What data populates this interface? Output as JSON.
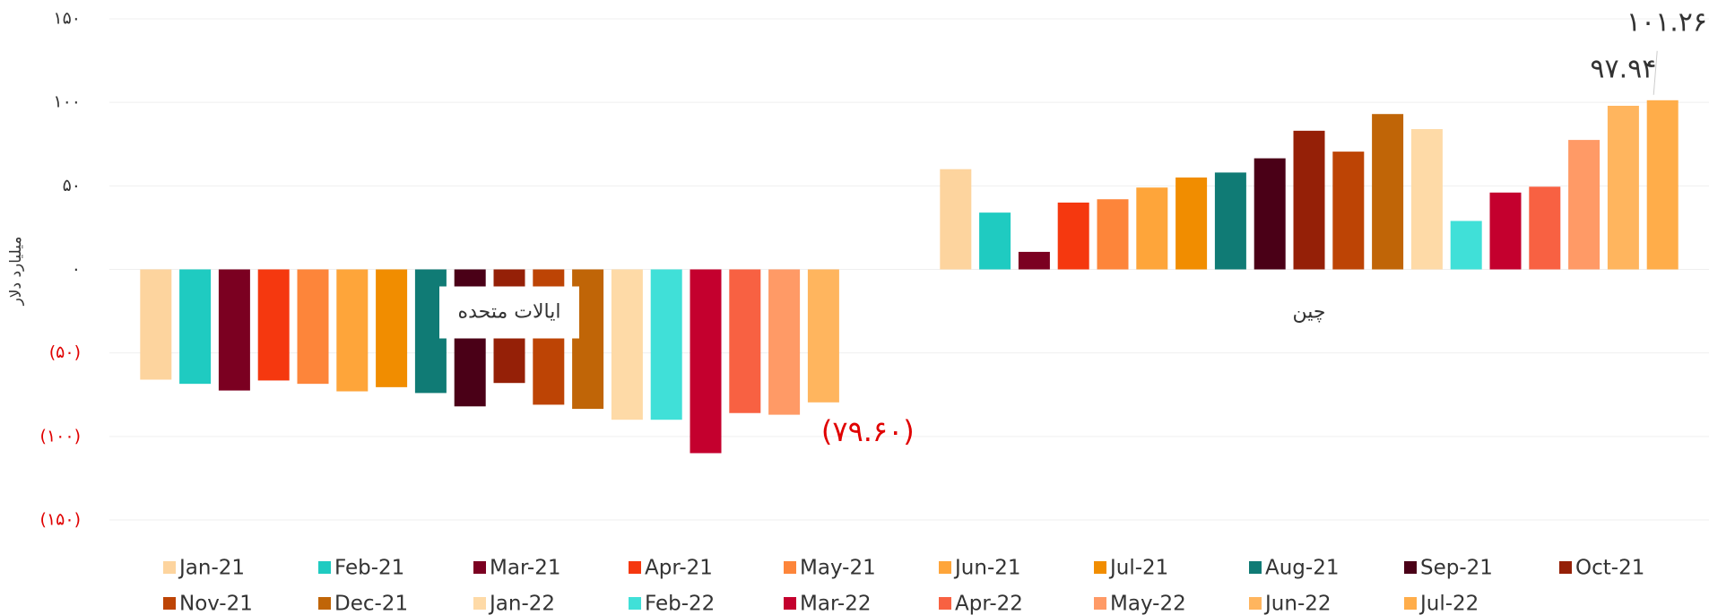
{
  "chart_data": {
    "type": "bar",
    "y_label": "میلیارد دلار",
    "categories": [
      "ایالات متحده",
      "چین"
    ],
    "series": [
      {
        "name": "Jan-21",
        "color": "#fdd49e",
        "values": [
          -66,
          60
        ]
      },
      {
        "name": "Feb-21",
        "color": "#1fcbc1",
        "values": [
          -68.5,
          34
        ]
      },
      {
        "name": "Mar-21",
        "color": "#7b0021",
        "values": [
          -72.5,
          10.5
        ]
      },
      {
        "name": "Apr-21",
        "color": "#f5380f",
        "values": [
          -66.5,
          40
        ]
      },
      {
        "name": "May-21",
        "color": "#fd853a",
        "values": [
          -68.5,
          42
        ]
      },
      {
        "name": "Jun-21",
        "color": "#fea53a",
        "values": [
          -73,
          49
        ]
      },
      {
        "name": "Jul-21",
        "color": "#f18d00",
        "values": [
          -70.5,
          55
        ]
      },
      {
        "name": "Aug-21",
        "color": "#107b75",
        "values": [
          -74,
          58
        ]
      },
      {
        "name": "Sep-21",
        "color": "#4a0017",
        "values": [
          -82,
          66.5
        ]
      },
      {
        "name": "Oct-21",
        "color": "#952007",
        "values": [
          -68,
          83
        ]
      },
      {
        "name": "Nov-21",
        "color": "#bd4405",
        "values": [
          -81,
          70.5
        ]
      },
      {
        "name": "Dec-21",
        "color": "#c06507",
        "values": [
          -83.5,
          93
        ]
      },
      {
        "name": "Jan-22",
        "color": "#fedaa7",
        "values": [
          -90,
          84
        ]
      },
      {
        "name": "Feb-22",
        "color": "#40e0d8",
        "values": [
          -90,
          29
        ]
      },
      {
        "name": "Mar-22",
        "color": "#c4002e",
        "values": [
          -110,
          46
        ]
      },
      {
        "name": "Apr-22",
        "color": "#f86142",
        "values": [
          -86,
          49.5
        ]
      },
      {
        "name": "May-22",
        "color": "#ff9a66",
        "values": [
          -87,
          77.5
        ]
      },
      {
        "name": "Jun-22",
        "color": "#ffb55e",
        "values": [
          -79.6,
          97.94
        ],
        "value_labels": [
          "(۷۹.۶۰)",
          "۹۷.۹۴"
        ]
      },
      {
        "name": "Jul-22",
        "color": "#ffad4a",
        "values": [
          null,
          101.26
        ],
        "value_labels": [
          null,
          "۱۰۱.۲۶"
        ]
      }
    ],
    "ylim": [
      -150,
      150
    ],
    "yticks": [
      {
        "value": -150,
        "label": "(۱۵۰)"
      },
      {
        "value": -100,
        "label": "(۱۰۰)"
      },
      {
        "value": -50,
        "label": "(۵۰)"
      },
      {
        "value": 0,
        "label": "۰"
      },
      {
        "value": 50,
        "label": "۵۰"
      },
      {
        "value": 100,
        "label": "۱۰۰"
      },
      {
        "value": 150,
        "label": "۱۵۰"
      }
    ],
    "grid": true,
    "legend": "bottom",
    "negative_color": "#e00000"
  }
}
